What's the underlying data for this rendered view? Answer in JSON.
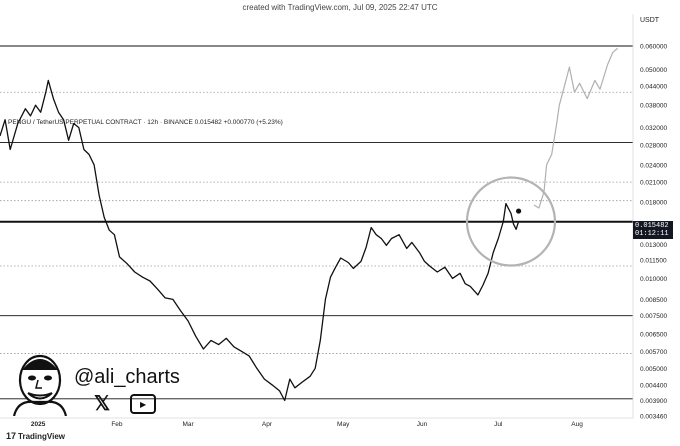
{
  "caption": "created with TradingView.com, Jul 09, 2025 22:47 UTC",
  "symbol_line": "PENGU / TetherUS PERPETUAL CONTRACT · 12h · BINANCE  0.015482  +0.000770 (+5.23%)",
  "unit": "USDT",
  "handle": "@ali_charts",
  "footer": {
    "logo_text": "TradingView",
    "logo_mark": "17"
  },
  "price_badge": {
    "price": "0.015482",
    "countdown": "01:12:11"
  },
  "icons": {
    "x": "x-icon",
    "youtube": "youtube-icon",
    "avatar": "avatar-icon",
    "tradingview": "tradingview-logo-icon"
  },
  "colors": {
    "price_line": "#111111",
    "projection": "#b0b0b0",
    "circle": "#b3b3b3",
    "badge": "#131722"
  },
  "chart_data": {
    "type": "line",
    "title": "",
    "xlabel": "",
    "ylabel": "",
    "y_scale": "log",
    "ylim": [
      0.00346,
      0.07
    ],
    "y_ticks": [
      "0.070000",
      "0.060000",
      "0.050000",
      "0.044000",
      "0.038000",
      "0.032000",
      "0.028000",
      "0.024000",
      "0.021000",
      "0.018000",
      "0.015482",
      "0.013000",
      "0.011500",
      "0.010000",
      "0.008500",
      "0.007500",
      "0.006500",
      "0.005700",
      "0.005000",
      "0.004400",
      "0.003900",
      "0.003460"
    ],
    "x_ticks": [
      {
        "label": "2025",
        "date": "2025-01-01"
      },
      {
        "label": "Feb",
        "date": "2025-02-01"
      },
      {
        "label": "Mar",
        "date": "2025-03-01"
      },
      {
        "label": "Apr",
        "date": "2025-04-01"
      },
      {
        "label": "May",
        "date": "2025-05-01"
      },
      {
        "label": "Jun",
        "date": "2025-06-01"
      },
      {
        "label": "Jul",
        "date": "2025-07-01"
      },
      {
        "label": "Aug",
        "date": "2025-08-01"
      }
    ],
    "x_range": [
      "2024-12-17",
      "2025-08-23"
    ],
    "grid": false,
    "series": [
      {
        "style": "solid",
        "points": [
          [
            "2024-12-17",
            0.03
          ],
          [
            "2024-12-19",
            0.034
          ],
          [
            "2024-12-21",
            0.027
          ],
          [
            "2024-12-24",
            0.033
          ],
          [
            "2024-12-27",
            0.037
          ],
          [
            "2024-12-29",
            0.035
          ],
          [
            "2024-12-31",
            0.038
          ],
          [
            "2025-01-02",
            0.036
          ],
          [
            "2025-01-04",
            0.042
          ],
          [
            "2025-01-05",
            0.046
          ],
          [
            "2025-01-07",
            0.04
          ],
          [
            "2025-01-09",
            0.036
          ],
          [
            "2025-01-11",
            0.034
          ],
          [
            "2025-01-13",
            0.029
          ],
          [
            "2025-01-15",
            0.033
          ],
          [
            "2025-01-17",
            0.032
          ],
          [
            "2025-01-19",
            0.027
          ],
          [
            "2025-01-21",
            0.026
          ],
          [
            "2025-01-23",
            0.024
          ],
          [
            "2025-01-25",
            0.019
          ],
          [
            "2025-01-27",
            0.016
          ],
          [
            "2025-01-29",
            0.0145
          ],
          [
            "2025-01-31",
            0.014
          ],
          [
            "2025-02-02",
            0.0118
          ],
          [
            "2025-02-05",
            0.0112
          ],
          [
            "2025-02-08",
            0.0105
          ],
          [
            "2025-02-11",
            0.0101
          ],
          [
            "2025-02-14",
            0.0098
          ],
          [
            "2025-02-17",
            0.0092
          ],
          [
            "2025-02-20",
            0.0086
          ],
          [
            "2025-02-23",
            0.0085
          ],
          [
            "2025-02-26",
            0.0078
          ],
          [
            "2025-03-01",
            0.0072
          ],
          [
            "2025-03-04",
            0.0064
          ],
          [
            "2025-03-07",
            0.0058
          ],
          [
            "2025-03-10",
            0.0062
          ],
          [
            "2025-03-13",
            0.006
          ],
          [
            "2025-03-16",
            0.0063
          ],
          [
            "2025-03-19",
            0.0059
          ],
          [
            "2025-03-22",
            0.0057
          ],
          [
            "2025-03-25",
            0.0055
          ],
          [
            "2025-03-28",
            0.005
          ],
          [
            "2025-03-31",
            0.0046
          ],
          [
            "2025-04-03",
            0.0044
          ],
          [
            "2025-04-06",
            0.0042
          ],
          [
            "2025-04-08",
            0.0039
          ],
          [
            "2025-04-10",
            0.0046
          ],
          [
            "2025-04-12",
            0.0043
          ],
          [
            "2025-04-15",
            0.0045
          ],
          [
            "2025-04-18",
            0.0047
          ],
          [
            "2025-04-20",
            0.005
          ],
          [
            "2025-04-22",
            0.0062
          ],
          [
            "2025-04-24",
            0.0085
          ],
          [
            "2025-04-26",
            0.0101
          ],
          [
            "2025-04-28",
            0.0109
          ],
          [
            "2025-04-30",
            0.0117
          ],
          [
            "2025-05-03",
            0.0113
          ],
          [
            "2025-05-05",
            0.0108
          ],
          [
            "2025-05-08",
            0.0114
          ],
          [
            "2025-05-10",
            0.0127
          ],
          [
            "2025-05-12",
            0.0148
          ],
          [
            "2025-05-14",
            0.014
          ],
          [
            "2025-05-16",
            0.0136
          ],
          [
            "2025-05-18",
            0.0129
          ],
          [
            "2025-05-20",
            0.0136
          ],
          [
            "2025-05-23",
            0.014
          ],
          [
            "2025-05-26",
            0.0126
          ],
          [
            "2025-05-28",
            0.0132
          ],
          [
            "2025-05-31",
            0.0122
          ],
          [
            "2025-06-02",
            0.0114
          ],
          [
            "2025-06-04",
            0.011
          ],
          [
            "2025-06-07",
            0.0105
          ],
          [
            "2025-06-10",
            0.0109
          ],
          [
            "2025-06-13",
            0.01
          ],
          [
            "2025-06-16",
            0.0104
          ],
          [
            "2025-06-18",
            0.0096
          ],
          [
            "2025-06-20",
            0.0094
          ],
          [
            "2025-06-23",
            0.0088
          ],
          [
            "2025-06-25",
            0.0095
          ],
          [
            "2025-06-27",
            0.0104
          ],
          [
            "2025-06-29",
            0.0122
          ],
          [
            "2025-07-01",
            0.0136
          ],
          [
            "2025-07-03",
            0.0155
          ],
          [
            "2025-07-04",
            0.0178
          ],
          [
            "2025-07-06",
            0.0165
          ],
          [
            "2025-07-07",
            0.0152
          ],
          [
            "2025-07-08",
            0.0146
          ],
          [
            "2025-07-09",
            0.0155
          ]
        ]
      },
      {
        "style": "projection",
        "points": [
          [
            "2025-07-15",
            0.0176
          ],
          [
            "2025-07-17",
            0.0172
          ],
          [
            "2025-07-19",
            0.0195
          ],
          [
            "2025-07-20",
            0.024
          ],
          [
            "2025-07-22",
            0.026
          ],
          [
            "2025-07-24",
            0.033
          ],
          [
            "2025-07-25",
            0.038
          ],
          [
            "2025-07-27",
            0.044
          ],
          [
            "2025-07-29",
            0.051
          ],
          [
            "2025-07-31",
            0.042
          ],
          [
            "2025-08-02",
            0.045
          ],
          [
            "2025-08-05",
            0.04
          ],
          [
            "2025-08-08",
            0.046
          ],
          [
            "2025-08-10",
            0.043
          ],
          [
            "2025-08-13",
            0.052
          ],
          [
            "2025-08-15",
            0.057
          ],
          [
            "2025-08-17",
            0.059
          ]
        ]
      }
    ],
    "horizontal_levels": [
      {
        "price": 0.06,
        "style": "solid"
      },
      {
        "price": 0.042,
        "style": "dotted"
      },
      {
        "price": 0.0285,
        "style": "solid"
      },
      {
        "price": 0.021,
        "style": "dotted"
      },
      {
        "price": 0.0182,
        "style": "dotted"
      },
      {
        "price": 0.01548,
        "style": "thick"
      },
      {
        "price": 0.011,
        "style": "dotted"
      },
      {
        "price": 0.0075,
        "style": "solid"
      },
      {
        "price": 0.0056,
        "style": "dotted"
      },
      {
        "price": 0.00395,
        "style": "solid"
      }
    ],
    "highlight_circle": {
      "center_date": "2025-07-06",
      "center_price": 0.0155
    },
    "marker_point": {
      "date": "2025-07-09",
      "price": 0.0168
    }
  }
}
